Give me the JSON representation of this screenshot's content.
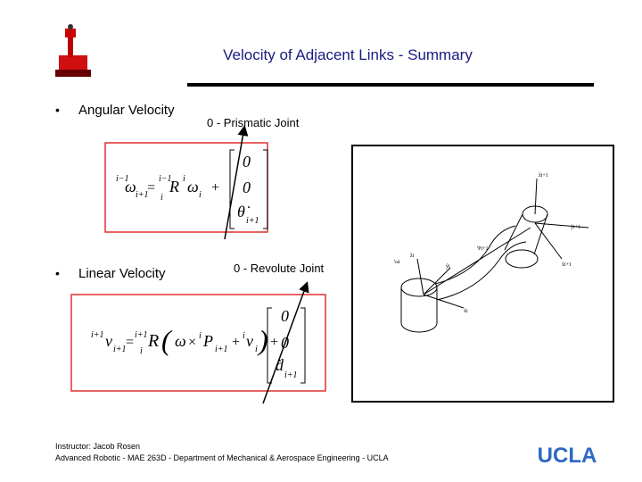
{
  "slide": {
    "title": "Velocity of Adjacent Links - Summary",
    "bullets": [
      "Angular Velocity",
      "Linear Velocity"
    ],
    "annotations": [
      "0 - Prismatic Joint",
      "0 - Revolute Joint"
    ],
    "equations": [
      {
        "tokens": [
          "i−1",
          "ω",
          "i+1",
          "=",
          "i−1",
          "i",
          "R",
          "i",
          "ω",
          "i",
          "+"
        ],
        "matrix": [
          "0",
          "0",
          "θ̇",
          "i+1"
        ]
      },
      {
        "tokens": [
          "i+1",
          "v",
          "i+1",
          "=",
          "i+1",
          "i",
          "R",
          "(",
          "ω",
          "×",
          "i",
          "P",
          "i+1",
          "+",
          "i",
          "v",
          "i",
          ")",
          "+"
        ],
        "matrix": [
          "0",
          "0",
          "ḋ",
          "i+1"
        ]
      }
    ],
    "figure_labels": [
      "ẑi+1",
      "x̂i+1",
      "ŷi+1",
      "ẑi",
      "ŷi",
      "x̂i",
      "ⁱPi+1",
      "ⁱωi"
    ],
    "footer": [
      "Instructor: Jacob Rosen",
      "Advanced Robotic - MAE 263D - Department of Mechanical & Aerospace Engineering - UCLA"
    ],
    "logo": "UCLA"
  }
}
